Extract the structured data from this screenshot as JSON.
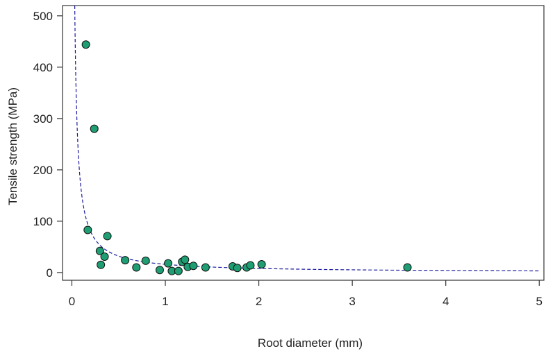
{
  "chart_data": {
    "type": "scatter",
    "xlabel": "Root diameter (mm)",
    "ylabel": "Tensile strength (MPa)",
    "xlim": [
      -0.1,
      5.05
    ],
    "ylim": [
      -15,
      520
    ],
    "xticks": [
      0,
      1,
      2,
      3,
      4,
      5
    ],
    "yticks": [
      0,
      100,
      200,
      300,
      400,
      500
    ],
    "grid": false,
    "colors": {
      "point_fill": "#1f9e73",
      "point_stroke": "#111111",
      "fit_line": "#1a1a9e",
      "axis": "#333333"
    },
    "points": [
      {
        "x": 0.15,
        "y": 444
      },
      {
        "x": 0.24,
        "y": 280
      },
      {
        "x": 0.17,
        "y": 83
      },
      {
        "x": 0.38,
        "y": 71
      },
      {
        "x": 0.3,
        "y": 42
      },
      {
        "x": 0.35,
        "y": 31
      },
      {
        "x": 0.31,
        "y": 15
      },
      {
        "x": 0.57,
        "y": 24
      },
      {
        "x": 0.69,
        "y": 10
      },
      {
        "x": 0.79,
        "y": 23
      },
      {
        "x": 0.94,
        "y": 5
      },
      {
        "x": 1.03,
        "y": 18
      },
      {
        "x": 1.07,
        "y": 3
      },
      {
        "x": 1.14,
        "y": 3
      },
      {
        "x": 1.18,
        "y": 21
      },
      {
        "x": 1.21,
        "y": 25
      },
      {
        "x": 1.24,
        "y": 11
      },
      {
        "x": 1.3,
        "y": 13
      },
      {
        "x": 1.43,
        "y": 10
      },
      {
        "x": 1.72,
        "y": 12
      },
      {
        "x": 1.77,
        "y": 9
      },
      {
        "x": 1.87,
        "y": 10
      },
      {
        "x": 1.91,
        "y": 14
      },
      {
        "x": 2.03,
        "y": 16
      },
      {
        "x": 3.59,
        "y": 10
      }
    ],
    "fit": {
      "type": "power",
      "a": 16,
      "b": -1,
      "style": "dashed"
    }
  }
}
